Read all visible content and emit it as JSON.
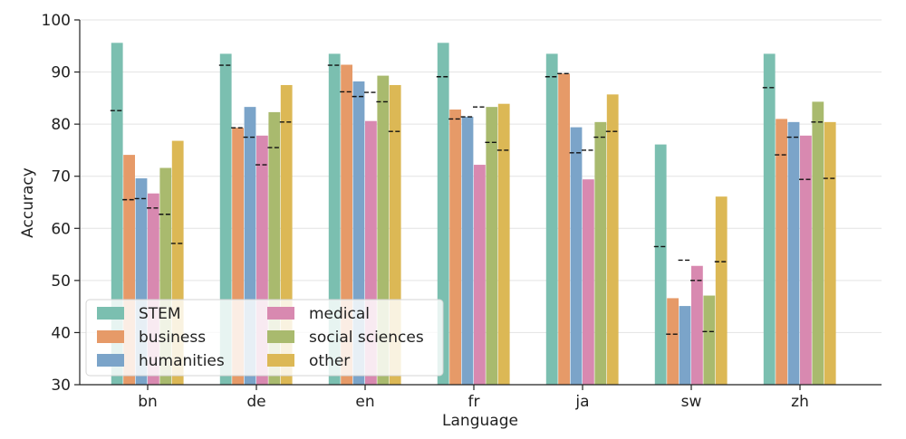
{
  "chart_data": {
    "type": "bar",
    "xlabel": "Language",
    "ylabel": "Accuracy",
    "ylim": [
      30,
      100
    ],
    "yticks": [
      30,
      40,
      50,
      60,
      70,
      80,
      90,
      100
    ],
    "grid": true,
    "legend_position": "lower-left",
    "categories": [
      "bn",
      "de",
      "en",
      "fr",
      "ja",
      "sw",
      "zh"
    ],
    "series": [
      {
        "name": "STEM",
        "color": "#7bbfb0",
        "values": [
          95.6,
          93.5,
          93.5,
          95.6,
          93.5,
          76.1,
          93.5
        ],
        "reference": [
          82.6,
          91.3,
          91.3,
          89.1,
          89.1,
          56.5,
          87.0
        ]
      },
      {
        "name": "business",
        "color": "#e69a68",
        "values": [
          74.1,
          79.3,
          91.4,
          82.8,
          89.7,
          46.6,
          81.0
        ],
        "reference": [
          65.5,
          79.3,
          86.2,
          81.0,
          89.7,
          39.7,
          74.1
        ]
      },
      {
        "name": "humanities",
        "color": "#7ba4c9",
        "values": [
          69.6,
          83.3,
          88.2,
          81.4,
          79.4,
          45.1,
          80.4
        ],
        "reference": [
          65.7,
          77.5,
          85.3,
          81.4,
          74.5,
          53.9,
          77.5
        ]
      },
      {
        "name": "medical",
        "color": "#d889b0",
        "values": [
          66.7,
          77.8,
          80.6,
          72.2,
          69.4,
          52.8,
          77.8
        ],
        "reference": [
          63.9,
          72.2,
          86.1,
          83.3,
          75.0,
          50.0,
          69.4
        ]
      },
      {
        "name": "social sciences",
        "color": "#a9ba6e",
        "values": [
          71.6,
          82.3,
          89.3,
          83.3,
          80.4,
          47.1,
          84.3
        ],
        "reference": [
          62.7,
          75.5,
          84.3,
          76.5,
          77.5,
          40.2,
          80.4
        ]
      },
      {
        "name": "other",
        "color": "#dcb855",
        "values": [
          76.8,
          87.5,
          87.5,
          83.9,
          85.7,
          66.1,
          80.4
        ],
        "reference": [
          57.1,
          80.4,
          78.6,
          75.0,
          78.6,
          53.6,
          69.6
        ]
      }
    ]
  }
}
